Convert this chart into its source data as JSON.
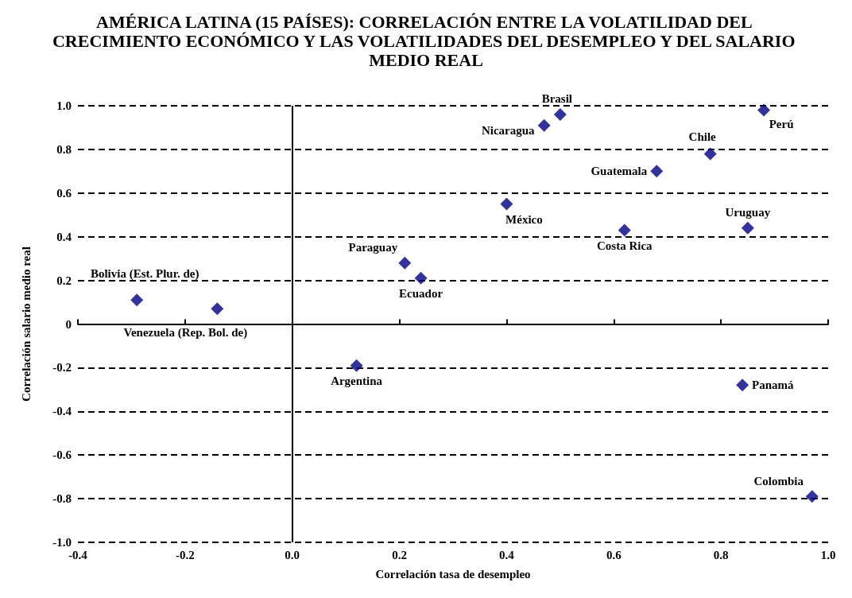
{
  "chart_data": {
    "type": "scatter",
    "title": "AMÉRICA LATINA (15 PAÍSES): CORRELACIÓN ENTRE LA VOLATILIDAD DEL CRECIMIENTO ECONÓMICO Y LAS VOLATILIDADES DEL DESEMPLEO Y DEL SALARIO MEDIO REAL",
    "xlabel": "Correlación tasa de desempleo",
    "ylabel": "Correlación salario medio real",
    "x": [
      -0.29,
      -0.14,
      0.12,
      0.21,
      0.24,
      0.4,
      0.47,
      0.5,
      0.62,
      0.68,
      0.78,
      0.88,
      0.85,
      0.84,
      0.97
    ],
    "values": [
      0.11,
      0.07,
      -0.19,
      0.28,
      0.21,
      0.55,
      0.91,
      0.96,
      0.43,
      0.7,
      0.78,
      0.98,
      0.44,
      -0.28,
      -0.79
    ],
    "color": "#000080",
    "marker": "diamond",
    "annotations": [
      {
        "text": "Bolivia (Est. Plur. de)",
        "x": -0.29,
        "y": 0.11
      },
      {
        "text": "Venezuela (Rep. Bol. de)",
        "x": -0.14,
        "y": 0.07
      },
      {
        "text": "Argentina",
        "x": 0.12,
        "y": -0.19
      },
      {
        "text": "Paraguay",
        "x": 0.21,
        "y": 0.28
      },
      {
        "text": "Ecuador",
        "x": 0.24,
        "y": 0.21
      },
      {
        "text": "México",
        "x": 0.4,
        "y": 0.55
      },
      {
        "text": "Nicaragua",
        "x": 0.47,
        "y": 0.91
      },
      {
        "text": "Brasil",
        "x": 0.5,
        "y": 0.96
      },
      {
        "text": "Costa Rica",
        "x": 0.62,
        "y": 0.43
      },
      {
        "text": "Guatemala",
        "x": 0.68,
        "y": 0.7
      },
      {
        "text": "Chile",
        "x": 0.78,
        "y": 0.78
      },
      {
        "text": "Perú",
        "x": 0.88,
        "y": 0.98
      },
      {
        "text": "Uruguay",
        "x": 0.85,
        "y": 0.44
      },
      {
        "text": "Panamá",
        "x": 0.84,
        "y": -0.28
      },
      {
        "text": "Colombia",
        "x": 0.97,
        "y": -0.79
      }
    ],
    "xlim": [
      -0.4,
      1.0
    ],
    "xticks": [
      {
        "value": -0.4,
        "label": "-0.4"
      },
      {
        "value": -0.2,
        "label": "-0.2"
      },
      {
        "value": 0,
        "label": "0.0"
      },
      {
        "value": 0.2,
        "label": "0.2"
      },
      {
        "value": 0.4,
        "label": "0.4"
      },
      {
        "value": 0.6,
        "label": "0.6"
      },
      {
        "value": 0.8,
        "label": "0.8"
      },
      {
        "value": 1,
        "label": "1.0"
      }
    ],
    "ylim": [
      -1.0,
      1.0
    ],
    "yticks": [
      {
        "value": -1,
        "label": "-1.0"
      },
      -0.8,
      -0.6,
      -0.4,
      -0.2,
      0,
      0.2,
      0.4,
      0.6,
      0.8,
      {
        "value": 1,
        "label": "1.0"
      }
    ],
    "ref_lines": [
      {
        "axis": "x",
        "value": 0
      }
    ],
    "grid": "y"
  }
}
